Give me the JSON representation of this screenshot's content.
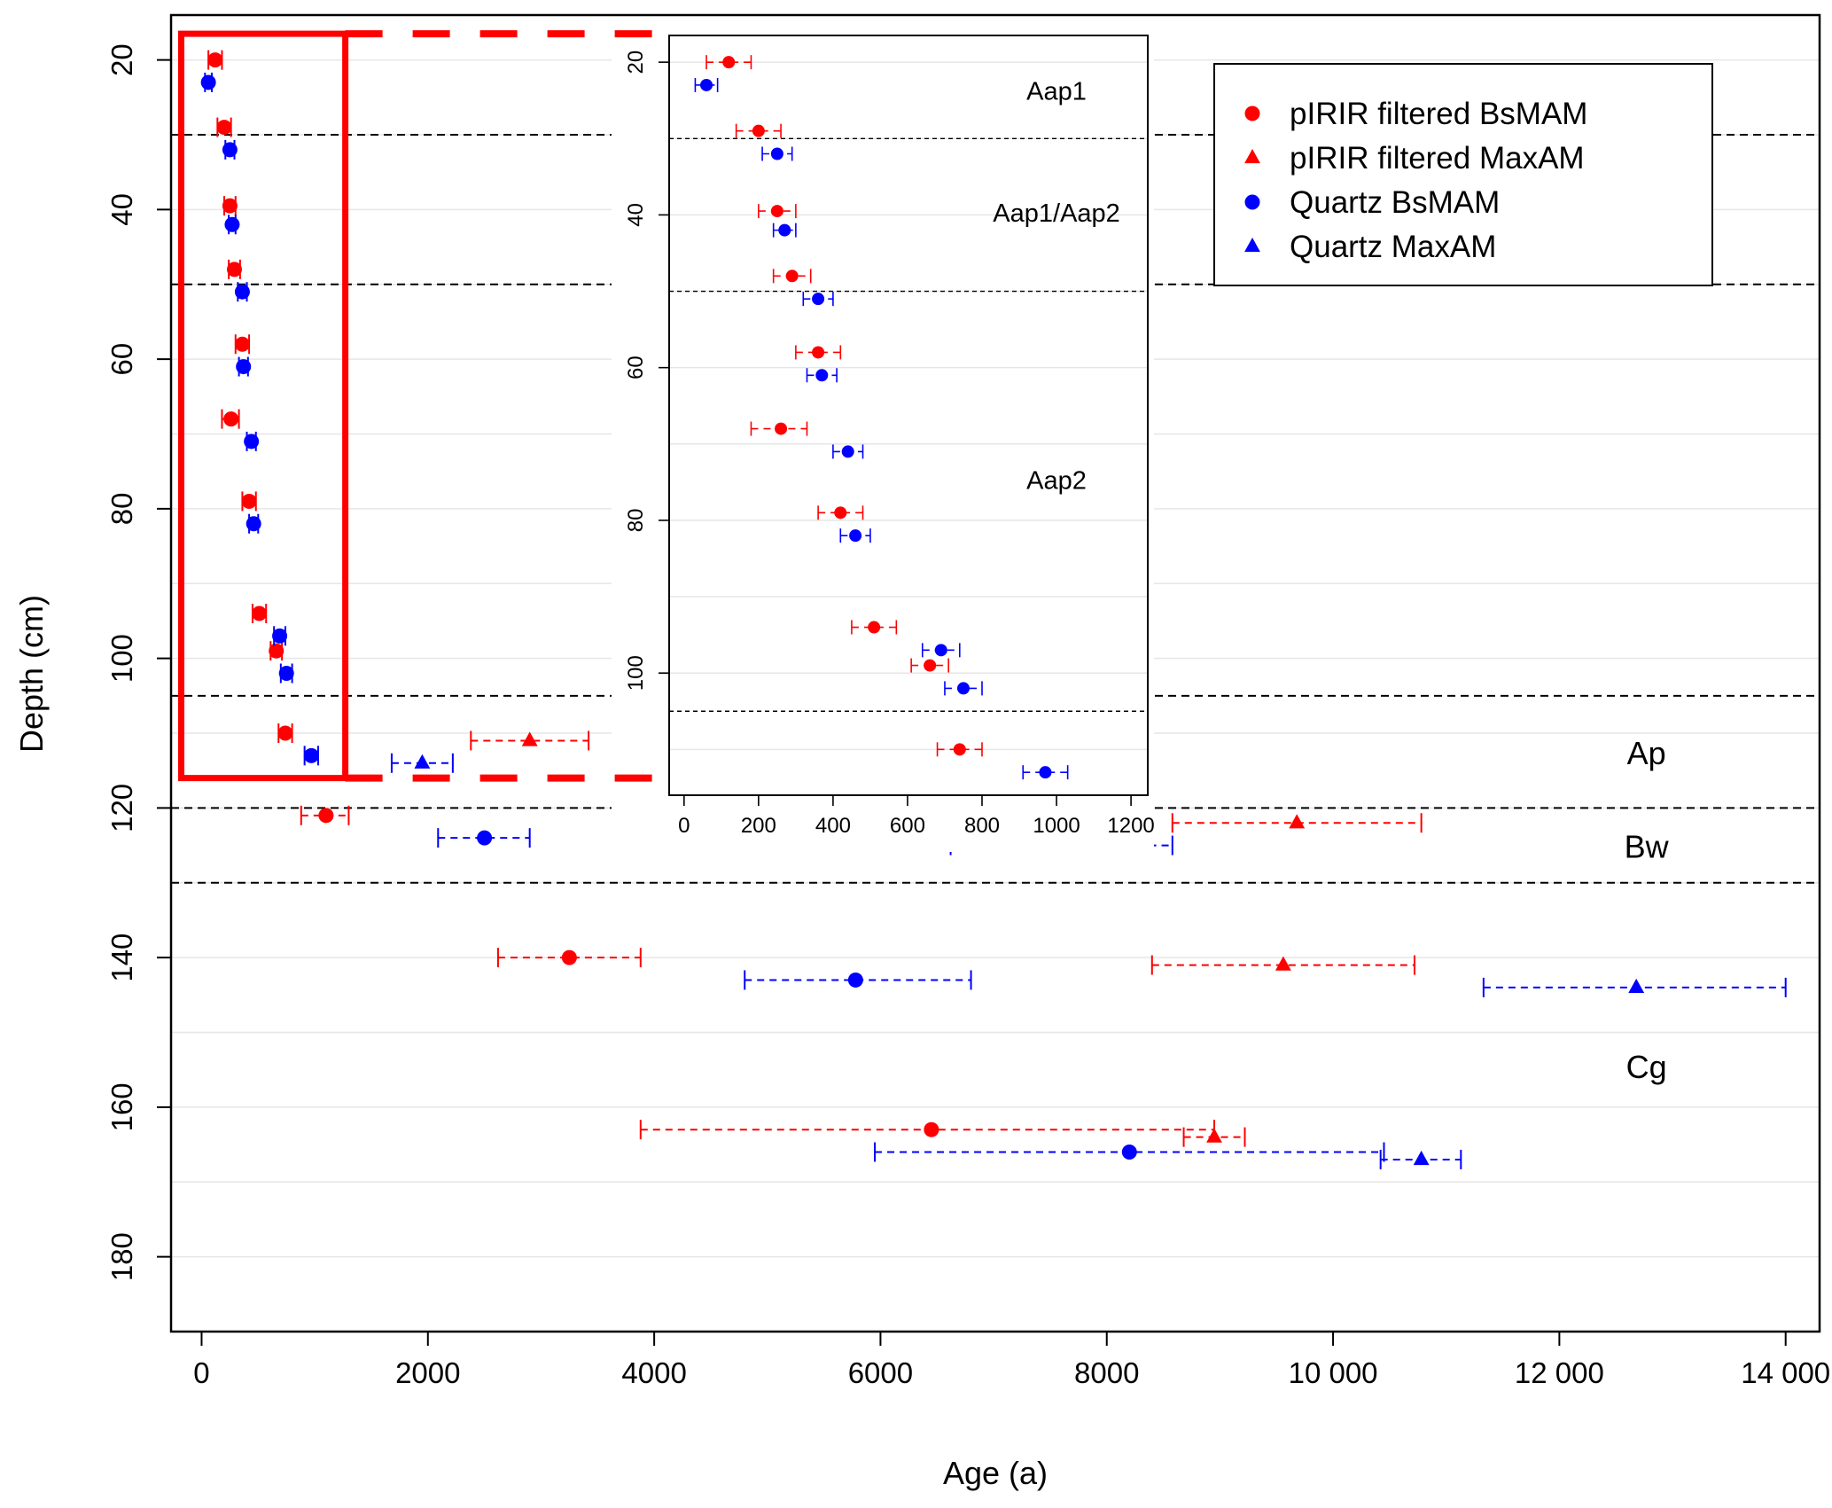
{
  "chart_data": {
    "type": "scatter",
    "title": "",
    "xlabel": "Age (a)",
    "ylabel": "Depth (cm)",
    "xlim": [
      -270,
      14300
    ],
    "ylim": [
      190,
      14
    ],
    "y_reversed": true,
    "x_ticks": [
      0,
      2000,
      4000,
      6000,
      8000,
      10000,
      12000,
      14000
    ],
    "x_tick_labels": [
      "0",
      "2000",
      "4000",
      "6000",
      "8000",
      "10 000",
      "12 000",
      "14 000"
    ],
    "y_ticks": [
      20,
      40,
      60,
      80,
      100,
      120,
      140,
      160,
      180
    ],
    "y_tick_labels": [
      "20",
      "40",
      "60",
      "80",
      "100",
      "120",
      "140",
      "160",
      "180"
    ],
    "grid": "horizontal, every 10 cm",
    "horizon_boundaries": [
      30,
      50,
      105,
      120,
      130
    ],
    "horizon_labels": [
      {
        "text": "Ap",
        "x": 12300,
        "y": 113
      },
      {
        "text": "Bw",
        "x": 12300,
        "y": 125.5
      },
      {
        "text": "Cg",
        "x": 12300,
        "y": 155
      }
    ],
    "legend": {
      "position": "top-right",
      "entries": [
        {
          "label": "pIRIR filtered BsMAM",
          "color": "#ff0000",
          "marker": "circle"
        },
        {
          "label": "pIRIR filtered MaxAM",
          "color": "#ff0000",
          "marker": "triangle"
        },
        {
          "label": "Quartz BsMAM",
          "color": "#0000ff",
          "marker": "circle"
        },
        {
          "label": "Quartz MaxAM",
          "color": "#0000ff",
          "marker": "triangle"
        }
      ]
    },
    "series": [
      {
        "name": "pIRIR filtered BsMAM",
        "color": "#ff0000",
        "marker": "circle",
        "points": [
          {
            "depth": 20,
            "age": 120,
            "lo": 60,
            "hi": 180
          },
          {
            "depth": 29,
            "age": 200,
            "lo": 140,
            "hi": 260
          },
          {
            "depth": 39.5,
            "age": 250,
            "lo": 200,
            "hi": 300
          },
          {
            "depth": 48,
            "age": 290,
            "lo": 240,
            "hi": 340
          },
          {
            "depth": 58,
            "age": 360,
            "lo": 300,
            "hi": 420
          },
          {
            "depth": 68,
            "age": 260,
            "lo": 180,
            "hi": 330
          },
          {
            "depth": 79,
            "age": 420,
            "lo": 360,
            "hi": 480
          },
          {
            "depth": 94,
            "age": 510,
            "lo": 450,
            "hi": 570
          },
          {
            "depth": 99,
            "age": 660,
            "lo": 610,
            "hi": 710
          },
          {
            "depth": 110,
            "age": 740,
            "lo": 680,
            "hi": 800
          },
          {
            "depth": 121,
            "age": 1100,
            "lo": 880,
            "hi": 1300
          },
          {
            "depth": 140,
            "age": 3250,
            "lo": 2620,
            "hi": 3880
          },
          {
            "depth": 163,
            "age": 6450,
            "lo": 3880,
            "hi": 8950
          }
        ]
      },
      {
        "name": "pIRIR filtered MaxAM",
        "color": "#ff0000",
        "marker": "triangle",
        "points": [
          {
            "depth": 111,
            "age": 2900,
            "lo": 2380,
            "hi": 3420
          },
          {
            "depth": 122,
            "age": 9680,
            "lo": 8580,
            "hi": 10780
          },
          {
            "depth": 141,
            "age": 9560,
            "lo": 8400,
            "hi": 10720
          },
          {
            "depth": 164,
            "age": 8950,
            "lo": 8680,
            "hi": 9220
          }
        ]
      },
      {
        "name": "Quartz BsMAM",
        "color": "#0000ff",
        "marker": "circle",
        "points": [
          {
            "depth": 23,
            "age": 60,
            "lo": 30,
            "hi": 90
          },
          {
            "depth": 32,
            "age": 250,
            "lo": 210,
            "hi": 290
          },
          {
            "depth": 42,
            "age": 270,
            "lo": 240,
            "hi": 300
          },
          {
            "depth": 51,
            "age": 360,
            "lo": 320,
            "hi": 400
          },
          {
            "depth": 61,
            "age": 370,
            "lo": 330,
            "hi": 410
          },
          {
            "depth": 71,
            "age": 440,
            "lo": 400,
            "hi": 480
          },
          {
            "depth": 82,
            "age": 460,
            "lo": 420,
            "hi": 500
          },
          {
            "depth": 97,
            "age": 690,
            "lo": 640,
            "hi": 740
          },
          {
            "depth": 102,
            "age": 750,
            "lo": 700,
            "hi": 800
          },
          {
            "depth": 113,
            "age": 970,
            "lo": 910,
            "hi": 1030
          },
          {
            "depth": 124,
            "age": 2500,
            "lo": 2090,
            "hi": 2900
          },
          {
            "depth": 143,
            "age": 5780,
            "lo": 4800,
            "hi": 6800
          },
          {
            "depth": 166,
            "age": 8200,
            "lo": 5950,
            "hi": 10450
          }
        ]
      },
      {
        "name": "Quartz MaxAM",
        "color": "#0000ff",
        "marker": "triangle",
        "points": [
          {
            "depth": 114,
            "age": 1950,
            "lo": 1680,
            "hi": 2220
          },
          {
            "depth": 125,
            "age": 7600,
            "lo": 6620,
            "hi": 8580
          },
          {
            "depth": 144,
            "age": 12680,
            "lo": 11330,
            "hi": 14000
          },
          {
            "depth": 167,
            "age": 10780,
            "lo": 10420,
            "hi": 11130
          }
        ]
      }
    ],
    "inset": {
      "type": "scatter",
      "xlim": [
        -40,
        1245
      ],
      "ylim": [
        116,
        16.5
      ],
      "x_ticks": [
        0,
        200,
        400,
        600,
        800,
        1000,
        1200
      ],
      "x_tick_labels": [
        "0",
        "200",
        "400",
        "600",
        "800",
        "1000",
        "1200"
      ],
      "y_ticks": [
        20,
        40,
        60,
        80,
        100
      ],
      "y_tick_labels": [
        "20",
        "40",
        "60",
        "80",
        "100"
      ],
      "horizon_boundaries": [
        30,
        50,
        105
      ],
      "horizon_labels": [
        {
          "text": "Aap1",
          "x": 1000,
          "y": 24
        },
        {
          "text": "Aap1/Aap2",
          "x": 1000,
          "y": 40
        },
        {
          "text": "Aap2",
          "x": 1000,
          "y": 75
        }
      ],
      "zoom_box": {
        "age_min": -180,
        "age_max": 1270,
        "depth_min": 16.5,
        "depth_max": 116
      }
    }
  }
}
